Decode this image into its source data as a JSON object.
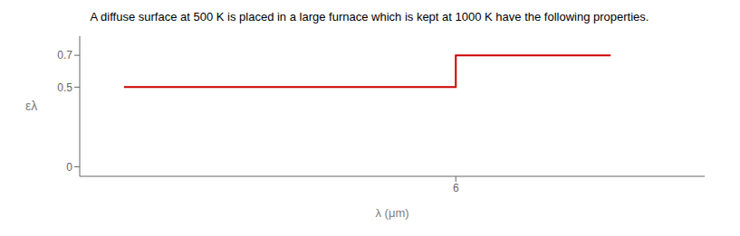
{
  "chart_data": {
    "type": "line",
    "title": "A diffuse surface at 500 K is placed in a large furnace which is kept at 1000 K have the following properties.",
    "xlabel": "λ (μm)",
    "ylabel": "ελ",
    "x": [
      0,
      6,
      6,
      8.8
    ],
    "values": [
      0.5,
      0.5,
      0.7,
      0.7
    ],
    "color": "#cc0000",
    "xlim": [
      -0.8,
      10.5
    ],
    "ylim": [
      -0.06,
      0.82
    ],
    "xticks": [
      6
    ],
    "yticks": [
      0,
      0.5,
      0.7
    ],
    "grid": false
  }
}
